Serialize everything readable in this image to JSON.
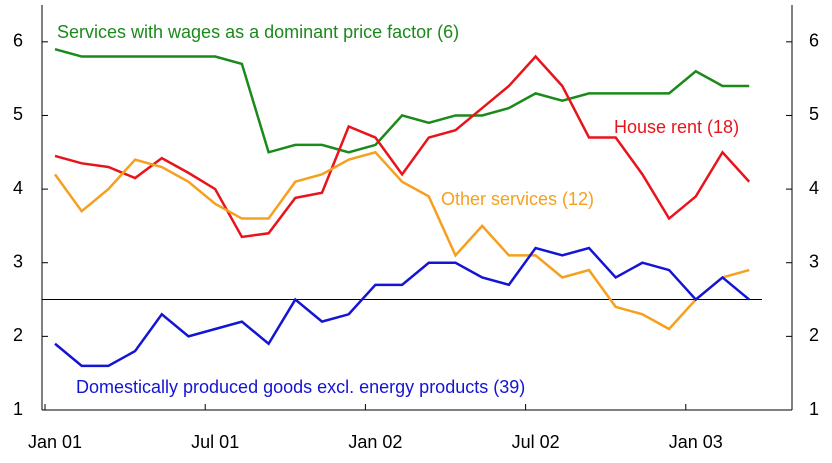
{
  "chart_data": {
    "type": "line",
    "categories": [
      "Jan 01",
      null,
      null,
      null,
      null,
      null,
      "Jul 01",
      null,
      null,
      null,
      null,
      null,
      "Jan 02",
      null,
      null,
      null,
      null,
      null,
      "Jul 02",
      null,
      null,
      null,
      null,
      null,
      "Jan 03",
      null,
      null
    ],
    "series": [
      {
        "name": "Services with wages as a dominant price factor (6)",
        "color": "#1a8a1a",
        "values": [
          5.9,
          5.8,
          5.8,
          5.8,
          5.8,
          5.8,
          5.8,
          5.7,
          4.5,
          4.6,
          4.6,
          4.5,
          4.6,
          5.0,
          4.9,
          5.0,
          5.0,
          5.1,
          5.3,
          5.2,
          5.3,
          5.3,
          5.3,
          5.3,
          5.6,
          5.4,
          5.4
        ]
      },
      {
        "name": "House rent (18)",
        "color": "#e8141c",
        "values": [
          4.45,
          4.35,
          4.3,
          4.15,
          4.42,
          4.22,
          4.0,
          3.35,
          3.4,
          3.88,
          3.95,
          4.85,
          4.7,
          4.2,
          4.7,
          4.8,
          5.1,
          5.4,
          5.8,
          5.4,
          4.7,
          4.7,
          4.2,
          3.6,
          3.9,
          4.5,
          4.1
        ]
      },
      {
        "name": "Other services (12)",
        "color": "#f5a01e",
        "values": [
          4.2,
          3.7,
          4.0,
          4.4,
          4.3,
          4.1,
          3.8,
          3.6,
          3.6,
          4.1,
          4.2,
          4.4,
          4.5,
          4.1,
          3.9,
          3.1,
          3.5,
          3.1,
          3.1,
          2.8,
          2.9,
          2.4,
          2.3,
          2.1,
          2.5,
          2.8,
          2.9
        ]
      },
      {
        "name": "Domestically produced goods excl. energy products (39)",
        "color": "#1414d4",
        "values": [
          1.9,
          1.6,
          1.6,
          1.8,
          2.3,
          2.0,
          2.1,
          2.2,
          1.9,
          2.5,
          2.2,
          2.3,
          2.7,
          2.7,
          3.0,
          3.0,
          2.8,
          2.7,
          3.2,
          3.1,
          3.2,
          2.8,
          3.0,
          2.9,
          2.5,
          2.8,
          2.5
        ]
      }
    ],
    "reference_line": 2.5,
    "ylim": [
      1,
      6.5
    ],
    "yticks": [
      1,
      2,
      3,
      4,
      5,
      6
    ],
    "y2lim": [
      1,
      6.5
    ],
    "y2ticks": [
      1,
      2,
      3,
      4,
      5,
      6
    ]
  }
}
